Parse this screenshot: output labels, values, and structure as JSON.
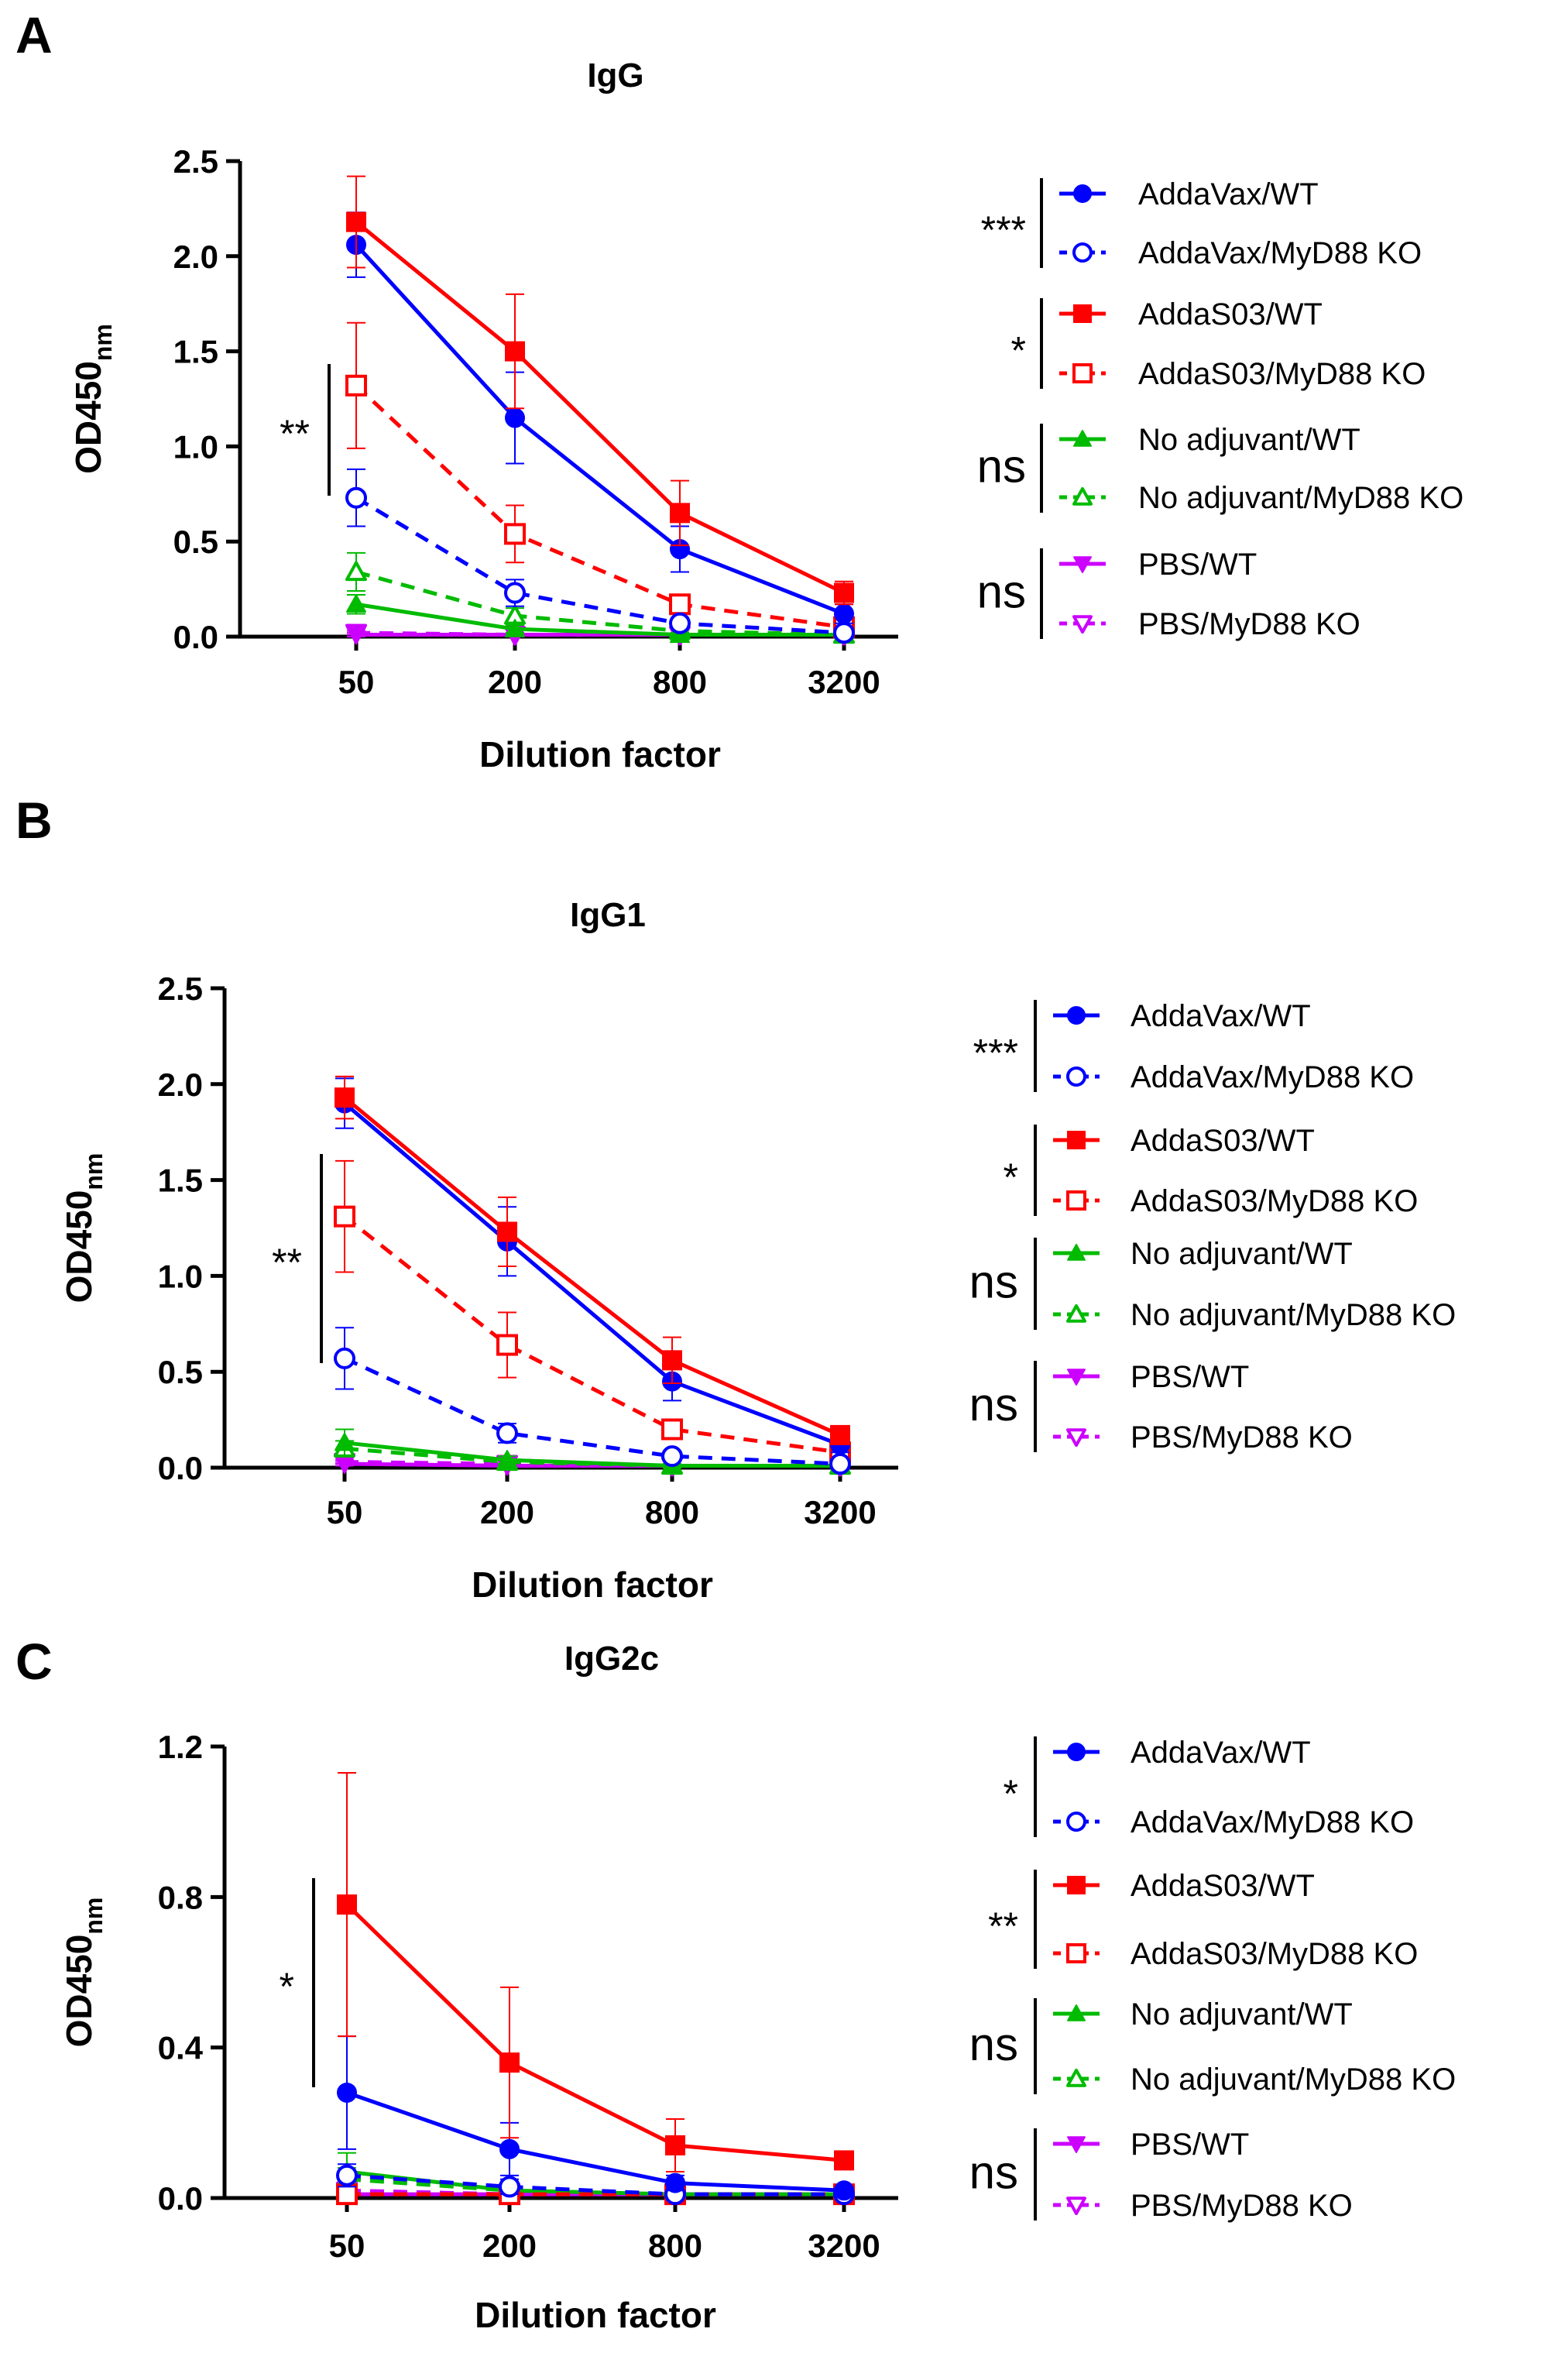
{
  "chart_data": [
    {
      "type": "line",
      "panel_label": "A",
      "title": "IgG",
      "xlabel": "Dilution factor",
      "ylabel_main": "OD450",
      "ylabel_sub": "nm",
      "categories": [
        "50",
        "200",
        "800",
        "3200"
      ],
      "ylim": [
        0,
        2.5
      ],
      "yticks": [
        "0.0",
        "0.5",
        "1.0",
        "1.5",
        "2.0",
        "2.5"
      ],
      "ytick_values": [
        0,
        0.5,
        1.0,
        1.5,
        2.0,
        2.5
      ],
      "series": [
        {
          "name": "AddaVax/WT",
          "values": [
            2.06,
            1.15,
            0.46,
            0.12
          ],
          "errors": [
            0.17,
            0.24,
            0.12,
            0.05
          ]
        },
        {
          "name": "AddaVax/MyD88 KO",
          "values": [
            0.73,
            0.23,
            0.07,
            0.02
          ],
          "errors": [
            0.15,
            0.07,
            0.03,
            0.01
          ]
        },
        {
          "name": "AddaS03/WT",
          "values": [
            2.18,
            1.5,
            0.65,
            0.23
          ],
          "errors": [
            0.24,
            0.3,
            0.17,
            0.06
          ]
        },
        {
          "name": "AddaS03/MyD88 KO",
          "values": [
            1.32,
            0.54,
            0.17,
            0.05
          ],
          "errors": [
            0.33,
            0.15,
            0.05,
            0.02
          ]
        },
        {
          "name": "No adjuvant/WT",
          "values": [
            0.17,
            0.04,
            0.01,
            0.01
          ],
          "errors": [
            0.05,
            0.02,
            0.01,
            0.01
          ]
        },
        {
          "name": "No adjuvant/MyD88 KO",
          "values": [
            0.34,
            0.11,
            0.03,
            0.01
          ],
          "errors": [
            0.1,
            0.04,
            0.01,
            0.01
          ]
        },
        {
          "name": "PBS/WT",
          "values": [
            0.01,
            0.01,
            0.01,
            0.01
          ],
          "errors": [
            0.01,
            0.01,
            0.01,
            0.01
          ]
        },
        {
          "name": "PBS/MyD88 KO",
          "values": [
            0.02,
            0.01,
            0.01,
            0.01
          ],
          "errors": [
            0.01,
            0.01,
            0.01,
            0.01
          ]
        }
      ],
      "left_significance": "**",
      "legend_significance": [
        "***",
        "*",
        "ns",
        "ns"
      ]
    },
    {
      "type": "line",
      "panel_label": "B",
      "title": "IgG1",
      "xlabel": "Dilution factor",
      "ylabel_main": "OD450",
      "ylabel_sub": "nm",
      "categories": [
        "50",
        "200",
        "800",
        "3200"
      ],
      "ylim": [
        0,
        2.5
      ],
      "yticks": [
        "0.0",
        "0.5",
        "1.0",
        "1.5",
        "2.0",
        "2.5"
      ],
      "ytick_values": [
        0,
        0.5,
        1.0,
        1.5,
        2.0,
        2.5
      ],
      "series": [
        {
          "name": "AddaVax/WT",
          "values": [
            1.9,
            1.18,
            0.45,
            0.12
          ],
          "errors": [
            0.13,
            0.18,
            0.1,
            0.04
          ]
        },
        {
          "name": "AddaVax/MyD88 KO",
          "values": [
            0.57,
            0.18,
            0.06,
            0.02
          ],
          "errors": [
            0.16,
            0.05,
            0.02,
            0.01
          ]
        },
        {
          "name": "AddaS03/WT",
          "values": [
            1.93,
            1.23,
            0.56,
            0.17
          ],
          "errors": [
            0.11,
            0.18,
            0.12,
            0.04
          ]
        },
        {
          "name": "AddaS03/MyD88 KO",
          "values": [
            1.31,
            0.64,
            0.2,
            0.08
          ],
          "errors": [
            0.29,
            0.17,
            0.05,
            0.02
          ]
        },
        {
          "name": "No adjuvant/WT",
          "values": [
            0.13,
            0.04,
            0.01,
            0.01
          ],
          "errors": [
            0.07,
            0.02,
            0.01,
            0.01
          ]
        },
        {
          "name": "No adjuvant/MyD88 KO",
          "values": [
            0.1,
            0.03,
            0.01,
            0.01
          ],
          "errors": [
            0.04,
            0.01,
            0.01,
            0.01
          ]
        },
        {
          "name": "PBS/WT",
          "values": [
            0.02,
            0.01,
            0.01,
            0.01
          ],
          "errors": [
            0.01,
            0.01,
            0.01,
            0.01
          ]
        },
        {
          "name": "PBS/MyD88 KO",
          "values": [
            0.03,
            0.02,
            0.01,
            0.01
          ],
          "errors": [
            0.01,
            0.01,
            0.01,
            0.01
          ]
        }
      ],
      "left_significance": "**",
      "legend_significance": [
        "***",
        "*",
        "ns",
        "ns"
      ]
    },
    {
      "type": "line",
      "panel_label": "C",
      "title": "IgG2c",
      "xlabel": "Dilution factor",
      "ylabel_main": "OD450",
      "ylabel_sub": "nm",
      "categories": [
        "50",
        "200",
        "800",
        "3200"
      ],
      "ylim": [
        0,
        1.2
      ],
      "yticks": [
        "0.0",
        "0.4",
        "0.8",
        "1.2"
      ],
      "ytick_values": [
        0,
        0.4,
        0.8,
        1.2
      ],
      "series": [
        {
          "name": "AddaVax/WT",
          "values": [
            0.28,
            0.13,
            0.04,
            0.02
          ],
          "errors": [
            0.15,
            0.07,
            0.02,
            0.01
          ]
        },
        {
          "name": "AddaVax/MyD88 KO",
          "values": [
            0.06,
            0.03,
            0.01,
            0.01
          ],
          "errors": [
            0.03,
            0.02,
            0.01,
            0.01
          ]
        },
        {
          "name": "AddaS03/WT",
          "values": [
            0.78,
            0.36,
            0.14,
            0.1
          ],
          "errors": [
            0.35,
            0.2,
            0.07,
            0.02
          ]
        },
        {
          "name": "AddaS03/MyD88 KO",
          "values": [
            0.01,
            0.01,
            0.01,
            0.01
          ],
          "errors": [
            0.01,
            0.01,
            0.01,
            0.01
          ]
        },
        {
          "name": "No adjuvant/WT",
          "values": [
            0.07,
            0.02,
            0.01,
            0.01
          ],
          "errors": [
            0.05,
            0.01,
            0.01,
            0.01
          ]
        },
        {
          "name": "No adjuvant/MyD88 KO",
          "values": [
            0.05,
            0.02,
            0.01,
            0.01
          ],
          "errors": [
            0.03,
            0.01,
            0.01,
            0.01
          ]
        },
        {
          "name": "PBS/WT",
          "values": [
            0.01,
            0.01,
            0.01,
            0.01
          ],
          "errors": [
            0.01,
            0.01,
            0.01,
            0.01
          ]
        },
        {
          "name": "PBS/MyD88 KO",
          "values": [
            0.02,
            0.01,
            0.01,
            0.01
          ],
          "errors": [
            0.01,
            0.01,
            0.01,
            0.01
          ]
        }
      ],
      "left_significance": "*",
      "legend_significance": [
        "*",
        "**",
        "ns",
        "ns"
      ]
    }
  ],
  "series_styles": [
    {
      "color": "#0000ff",
      "marker": "circle",
      "filled": true,
      "dashed": false
    },
    {
      "color": "#0000ff",
      "marker": "circle",
      "filled": false,
      "dashed": true
    },
    {
      "color": "#ff0000",
      "marker": "square",
      "filled": true,
      "dashed": false
    },
    {
      "color": "#ff0000",
      "marker": "square",
      "filled": false,
      "dashed": true
    },
    {
      "color": "#00bb00",
      "marker": "triangle-up",
      "filled": true,
      "dashed": false
    },
    {
      "color": "#00bb00",
      "marker": "triangle-up",
      "filled": false,
      "dashed": true
    },
    {
      "color": "#cc00ff",
      "marker": "triangle-down",
      "filled": true,
      "dashed": false
    },
    {
      "color": "#cc00ff",
      "marker": "triangle-down",
      "filled": false,
      "dashed": true
    }
  ]
}
